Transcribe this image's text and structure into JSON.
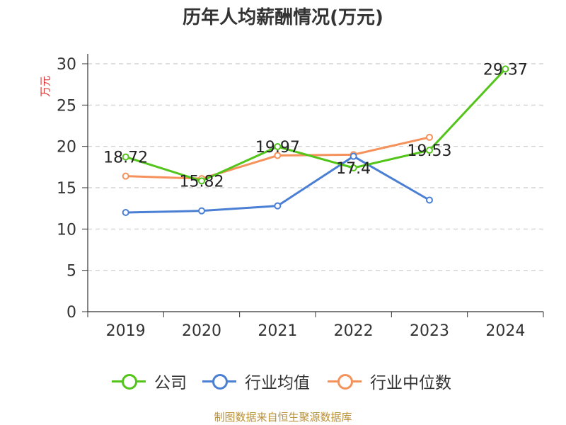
{
  "title": "历年人均薪酬情况(万元)",
  "source": "制图数据来自恒生聚源数据库",
  "chart_data": {
    "type": "line",
    "title": "历年人均薪酬情况(万元)",
    "ylabel": "万元",
    "xlabel": "",
    "ylim": [
      0,
      30
    ],
    "yticks": [
      "0",
      "5",
      "10",
      "15",
      "20",
      "25",
      "30"
    ],
    "categories": [
      "2019",
      "2020",
      "2021",
      "2022",
      "2023",
      "2024"
    ],
    "grid": "horizontal dashed",
    "legend_position": "bottom",
    "series": [
      {
        "name": "公司",
        "color": "#52c41a",
        "values": [
          18.72,
          15.82,
          19.97,
          17.4,
          19.53,
          29.37
        ],
        "labels": [
          "18.72",
          "15.82",
          "19.97",
          "17.4",
          "19.53",
          "29.37"
        ]
      },
      {
        "name": "行业均值",
        "color": "#4a7fd4",
        "values": [
          12.0,
          12.2,
          12.8,
          18.8,
          13.5,
          null
        ]
      },
      {
        "name": "行业中位数",
        "color": "#f5915a",
        "values": [
          16.4,
          16.1,
          18.9,
          19.0,
          21.1,
          null
        ]
      }
    ]
  }
}
